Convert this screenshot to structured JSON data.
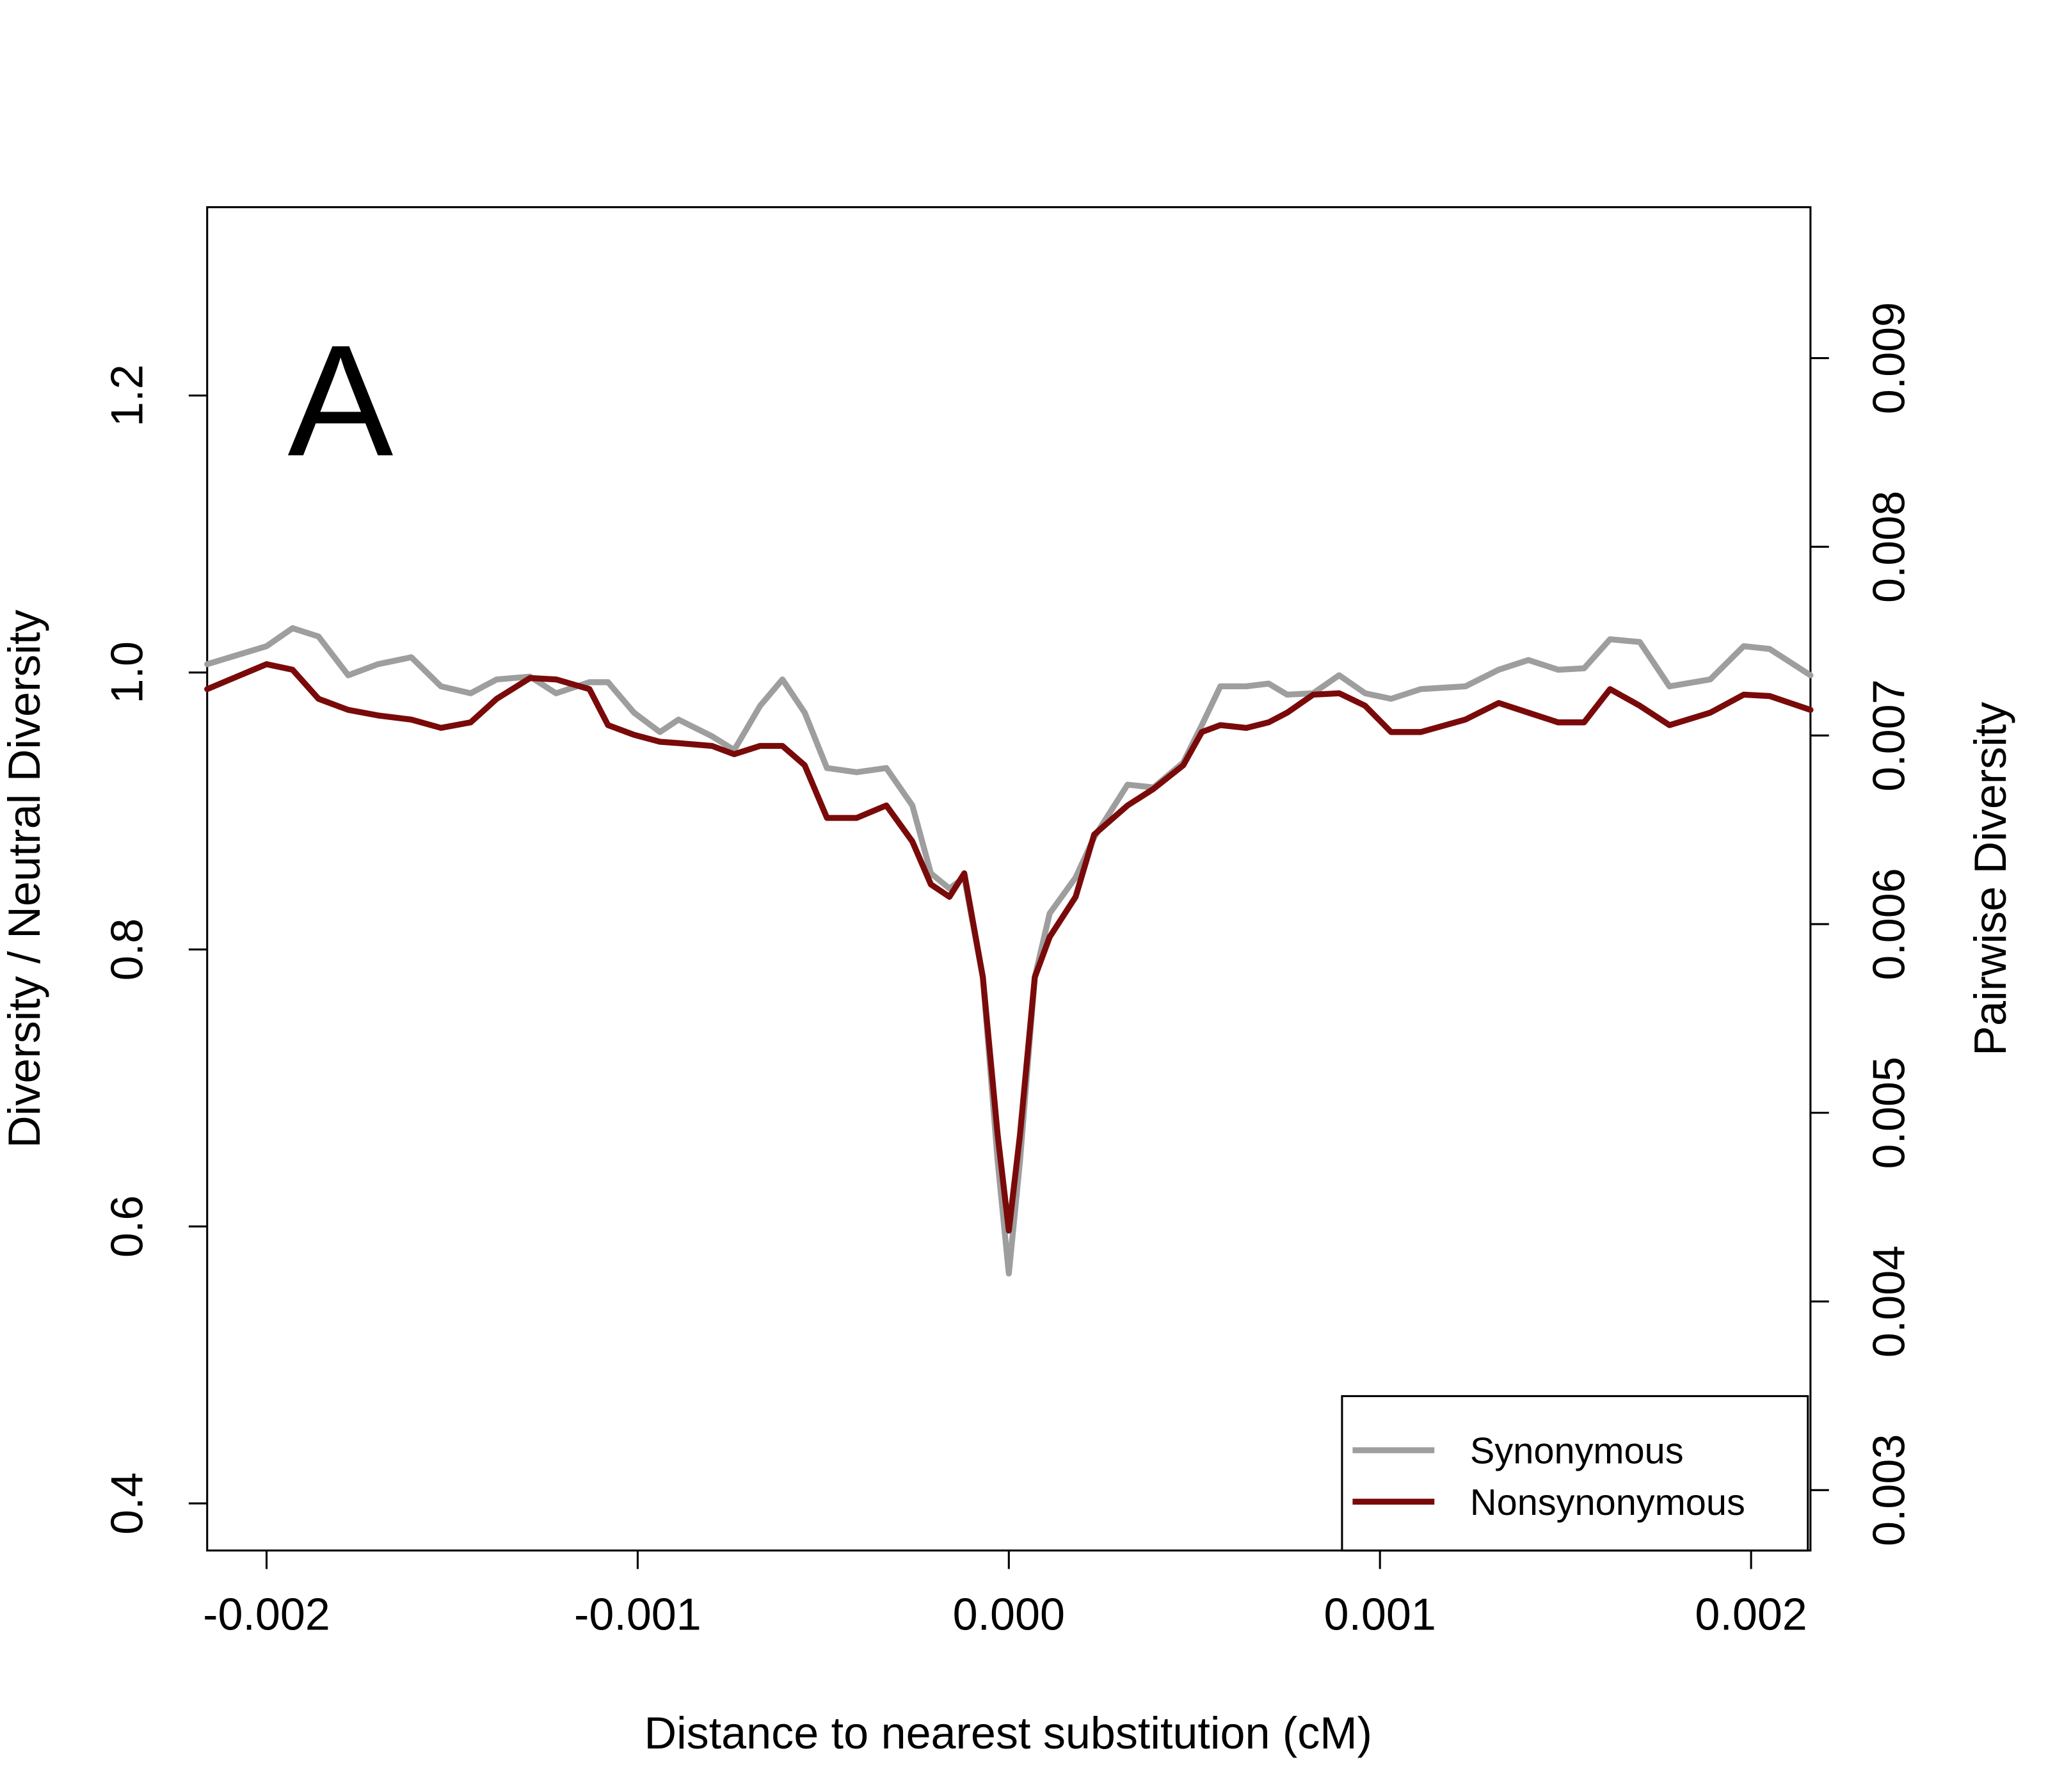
{
  "chart_data": {
    "type": "line",
    "panel_label": "A",
    "x_label": "Distance to nearest substitution (cM)",
    "y_label": "Diversity / Neutral Diversity",
    "y2_label": "Pairwise Diversity",
    "x": [
      -0.00216,
      -0.002,
      -0.00193,
      -0.00186,
      -0.00178,
      -0.0017,
      -0.00161,
      -0.00153,
      -0.00145,
      -0.00138,
      -0.00129,
      -0.00122,
      -0.00113,
      -0.00108,
      -0.00101,
      -0.00094,
      -0.00089,
      -0.0008,
      -0.00074,
      -0.00067,
      -0.00061,
      -0.00055,
      -0.00049,
      -0.00041,
      -0.00033,
      -0.00026,
      -0.00021,
      -0.00016,
      -0.00012,
      -7e-05,
      -3e-05,
      0,
      3e-05,
      7e-05,
      0.00011,
      0.00018,
      0.00023,
      0.00032,
      0.00039,
      0.00047,
      0.00052,
      0.00057,
      0.00064,
      0.0007,
      0.00075,
      0.00082,
      0.00089,
      0.00096,
      0.00103,
      0.00111,
      0.00123,
      0.00132,
      0.0014,
      0.00148,
      0.00155,
      0.00162,
      0.0017,
      0.00178,
      0.00189,
      0.00198,
      0.00205,
      0.00216
    ],
    "series": [
      {
        "name": "Synonymous",
        "color": "#9e9e9e",
        "values": [
          1.006,
          1.019,
          1.032,
          1.026,
          0.998,
          1.006,
          1.011,
          0.99,
          0.985,
          0.995,
          0.997,
          0.985,
          0.993,
          0.993,
          0.971,
          0.957,
          0.966,
          0.954,
          0.944,
          0.976,
          0.995,
          0.971,
          0.931,
          0.928,
          0.931,
          0.904,
          0.855,
          0.844,
          0.852,
          0.78,
          0.647,
          0.566,
          0.647,
          0.78,
          0.826,
          0.852,
          0.881,
          0.919,
          0.917,
          0.935,
          0.962,
          0.99,
          0.99,
          0.992,
          0.984,
          0.985,
          0.998,
          0.985,
          0.981,
          0.988,
          0.99,
          1.002,
          1.009,
          1.002,
          1.003,
          1.024,
          1.022,
          0.99,
          0.995,
          1.019,
          1.017,
          0.998
        ]
      },
      {
        "name": "Nonsynonymous",
        "color": "#7a0a0a",
        "values": [
          0.988,
          1.006,
          1.002,
          0.981,
          0.973,
          0.969,
          0.966,
          0.96,
          0.964,
          0.981,
          0.996,
          0.995,
          0.988,
          0.962,
          0.955,
          0.95,
          0.949,
          0.947,
          0.941,
          0.947,
          0.947,
          0.933,
          0.895,
          0.895,
          0.904,
          0.878,
          0.847,
          0.838,
          0.855,
          0.78,
          0.666,
          0.597,
          0.666,
          0.78,
          0.809,
          0.838,
          0.883,
          0.904,
          0.916,
          0.933,
          0.957,
          0.962,
          0.96,
          0.964,
          0.971,
          0.984,
          0.985,
          0.976,
          0.957,
          0.957,
          0.966,
          0.978,
          0.971,
          0.964,
          0.964,
          0.988,
          0.976,
          0.962,
          0.971,
          0.984,
          0.983,
          0.973
        ]
      }
    ],
    "xlim": [
      -0.00216,
      0.00216
    ],
    "xticks": [
      -0.002,
      -0.001,
      {
        "value": 0,
        "label": "0.000"
      },
      0.001,
      0.002
    ],
    "ylim": [
      0.366,
      1.336
    ],
    "yticks": [
      0.4,
      0.6,
      0.8,
      {
        "value": 1,
        "label": "1.0"
      },
      1.2
    ],
    "y2lim": [
      0.00268,
      0.0098
    ],
    "y2ticks": [
      0.003,
      0.004,
      0.005,
      0.006,
      0.007,
      0.008,
      0.009
    ],
    "legend": "bottom-right",
    "grid": false
  }
}
